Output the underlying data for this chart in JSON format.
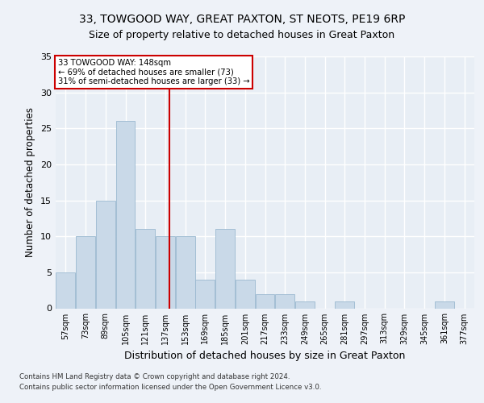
{
  "title": "33, TOWGOOD WAY, GREAT PAXTON, ST NEOTS, PE19 6RP",
  "subtitle": "Size of property relative to detached houses in Great Paxton",
  "xlabel": "Distribution of detached houses by size in Great Paxton",
  "ylabel": "Number of detached properties",
  "bins": [
    "57sqm",
    "73sqm",
    "89sqm",
    "105sqm",
    "121sqm",
    "137sqm",
    "153sqm",
    "169sqm",
    "185sqm",
    "201sqm",
    "217sqm",
    "233sqm",
    "249sqm",
    "265sqm",
    "281sqm",
    "297sqm",
    "313sqm",
    "329sqm",
    "345sqm",
    "361sqm",
    "377sqm"
  ],
  "bin_edges": [
    57,
    73,
    89,
    105,
    121,
    137,
    153,
    169,
    185,
    201,
    217,
    233,
    249,
    265,
    281,
    297,
    313,
    329,
    345,
    361,
    377,
    393
  ],
  "values": [
    5,
    10,
    15,
    26,
    11,
    10,
    10,
    4,
    11,
    4,
    2,
    2,
    1,
    0,
    1,
    0,
    0,
    0,
    0,
    1,
    0
  ],
  "bar_color": "#c9d9e8",
  "bar_edgecolor": "#9ab8d0",
  "vline_x": 148,
  "vline_color": "#cc0000",
  "annotation_text": "33 TOWGOOD WAY: 148sqm\n← 69% of detached houses are smaller (73)\n31% of semi-detached houses are larger (33) →",
  "annotation_box_edgecolor": "#cc0000",
  "annotation_box_facecolor": "white",
  "ylim": [
    0,
    35
  ],
  "yticks": [
    0,
    5,
    10,
    15,
    20,
    25,
    30,
    35
  ],
  "title_fontsize": 10,
  "subtitle_fontsize": 9,
  "xlabel_fontsize": 9,
  "ylabel_fontsize": 8.5,
  "footer1": "Contains HM Land Registry data © Crown copyright and database right 2024.",
  "footer2": "Contains public sector information licensed under the Open Government Licence v3.0.",
  "bg_color": "#eef2f8",
  "plot_bg_color": "#e8eef5"
}
